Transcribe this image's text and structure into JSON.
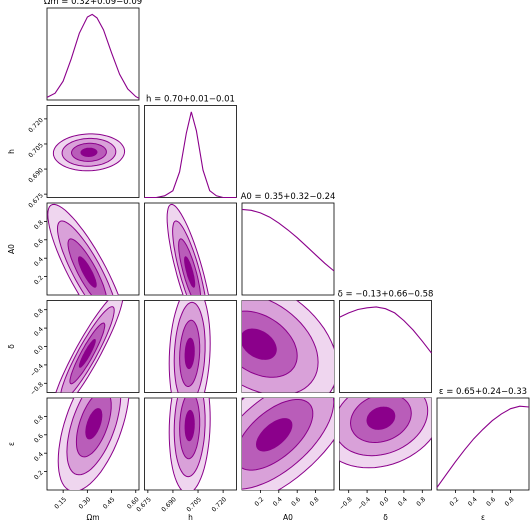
{
  "chart_data": {
    "type": "corner",
    "color": "#8b008b",
    "fill_levels": [
      "#efd6ef",
      "#d9a1d9",
      "#b95db9",
      "#8b008b"
    ],
    "parameters": [
      {
        "key": "Om",
        "axis_label": "Ωm",
        "title": "Ωm = 0.32+0.09−0.09",
        "range": [
          0.05,
          0.62
        ],
        "ticks": [
          0.15,
          0.3,
          0.45,
          0.6
        ],
        "tick_labels": [
          "0.15",
          "0.30",
          "0.45",
          "0.60"
        ],
        "median": 0.32,
        "sigma": 0.09
      },
      {
        "key": "h",
        "axis_label": "h",
        "title": "h = 0.70+0.01−0.01",
        "range": [
          0.673,
          0.728
        ],
        "ticks": [
          0.675,
          0.69,
          0.705,
          0.72
        ],
        "tick_labels": [
          "0.675",
          "0.690",
          "0.705",
          "0.720"
        ],
        "median": 0.7,
        "sigma": 0.01
      },
      {
        "key": "A0",
        "axis_label": "A0",
        "title": "A0 = 0.35+0.32−0.24",
        "range": [
          0.0,
          1.0
        ],
        "ticks": [
          0.2,
          0.4,
          0.6,
          0.8
        ],
        "tick_labels": [
          "0.2",
          "0.4",
          "0.6",
          "0.8"
        ],
        "median": 0.35,
        "sigma_plus": 0.32,
        "sigma_minus": 0.24
      },
      {
        "key": "delta",
        "axis_label": "δ",
        "title": "δ = −0.13+0.66−0.58",
        "range": [
          -1.0,
          1.0
        ],
        "ticks": [
          -0.8,
          -0.4,
          0.0,
          0.4,
          0.8
        ],
        "tick_labels": [
          "−0.8",
          "−0.4",
          "0.0",
          "0.4",
          "0.8"
        ],
        "median": -0.13,
        "sigma_plus": 0.66,
        "sigma_minus": 0.58
      },
      {
        "key": "eps",
        "axis_label": "ε",
        "title": "ε = 0.65+0.24−0.33",
        "range": [
          0.0,
          1.0
        ],
        "ticks": [
          0.2,
          0.4,
          0.6,
          0.8
        ],
        "tick_labels": [
          "0.2",
          "0.4",
          "0.6",
          "0.8"
        ],
        "median": 0.65,
        "sigma_plus": 0.24,
        "sigma_minus": 0.33
      }
    ],
    "marginals": [
      {
        "param": "Om",
        "x": [
          0.05,
          0.1,
          0.15,
          0.2,
          0.25,
          0.3,
          0.33,
          0.36,
          0.4,
          0.45,
          0.5,
          0.55,
          0.6,
          0.62
        ],
        "density": [
          0.03,
          0.08,
          0.22,
          0.48,
          0.78,
          0.97,
          1.0,
          0.96,
          0.82,
          0.55,
          0.3,
          0.13,
          0.04,
          0.02
        ]
      },
      {
        "param": "h",
        "x": [
          0.673,
          0.68,
          0.685,
          0.69,
          0.694,
          0.698,
          0.701,
          0.704,
          0.708,
          0.712,
          0.716,
          0.72,
          0.728
        ],
        "density": [
          0.0,
          0.0,
          0.02,
          0.08,
          0.3,
          0.75,
          1.0,
          0.78,
          0.32,
          0.08,
          0.02,
          0.0,
          0.0
        ]
      },
      {
        "param": "A0",
        "x": [
          0.0,
          0.1,
          0.2,
          0.3,
          0.4,
          0.5,
          0.6,
          0.7,
          0.8,
          0.9,
          1.0
        ],
        "density": [
          1.0,
          0.99,
          0.96,
          0.91,
          0.84,
          0.76,
          0.67,
          0.57,
          0.47,
          0.37,
          0.28
        ]
      },
      {
        "param": "delta",
        "x": [
          -1.0,
          -0.8,
          -0.6,
          -0.4,
          -0.2,
          0.0,
          0.2,
          0.4,
          0.6,
          0.8,
          1.0
        ],
        "density": [
          0.88,
          0.93,
          0.97,
          0.99,
          1.0,
          0.98,
          0.93,
          0.84,
          0.73,
          0.6,
          0.46
        ]
      },
      {
        "param": "eps",
        "x": [
          0.0,
          0.1,
          0.2,
          0.3,
          0.4,
          0.5,
          0.6,
          0.7,
          0.8,
          0.9,
          1.0
        ],
        "density": [
          0.03,
          0.18,
          0.33,
          0.47,
          0.6,
          0.71,
          0.81,
          0.89,
          0.95,
          0.98,
          0.97
        ]
      }
    ],
    "contours_2d": [
      {
        "x": "Om",
        "y": "h",
        "center": [
          0.31,
          0.7
        ],
        "spread": [
          0.09,
          0.0045
        ],
        "corr": 0.05
      },
      {
        "x": "Om",
        "y": "A0",
        "center": [
          0.3,
          0.25
        ],
        "spread": [
          0.1,
          0.3
        ],
        "corr": -0.85
      },
      {
        "x": "h",
        "y": "A0",
        "center": [
          0.7,
          0.25
        ],
        "spread": [
          0.0055,
          0.3
        ],
        "corr": -0.8
      },
      {
        "x": "Om",
        "y": "delta",
        "center": [
          0.3,
          -0.15
        ],
        "spread": [
          0.09,
          0.55
        ],
        "corr": 0.92
      },
      {
        "x": "h",
        "y": "delta",
        "center": [
          0.7,
          -0.15
        ],
        "spread": [
          0.005,
          0.6
        ],
        "corr": 0.15
      },
      {
        "x": "A0",
        "y": "delta",
        "center": [
          0.18,
          0.05
        ],
        "spread": [
          0.35,
          0.6
        ],
        "corr": -0.35
      },
      {
        "x": "Om",
        "y": "eps",
        "center": [
          0.34,
          0.72
        ],
        "spread": [
          0.09,
          0.3
        ],
        "corr": 0.55
      },
      {
        "x": "h",
        "y": "eps",
        "center": [
          0.7,
          0.7
        ],
        "spread": [
          0.005,
          0.3
        ],
        "corr": 0.1
      },
      {
        "x": "A0",
        "y": "eps",
        "center": [
          0.35,
          0.6
        ],
        "spread": [
          0.35,
          0.32
        ],
        "corr": 0.6
      },
      {
        "x": "delta",
        "y": "eps",
        "center": [
          -0.1,
          0.78
        ],
        "spread": [
          0.55,
          0.22
        ],
        "corr": 0.2
      }
    ]
  }
}
